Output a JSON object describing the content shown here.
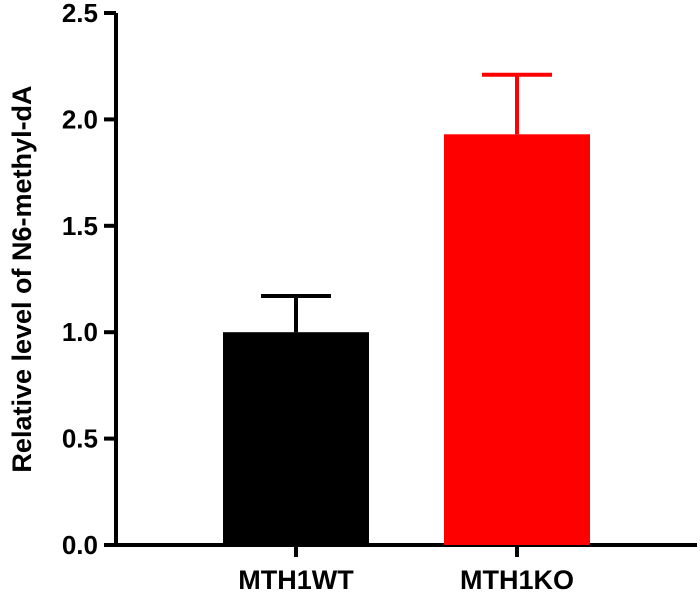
{
  "chart_data": {
    "type": "bar",
    "title": "",
    "xlabel": "",
    "ylabel": "Relative level of N6-methyl-dA",
    "categories": [
      "MTH1WT",
      "MTH1KO"
    ],
    "values": [
      1.0,
      1.93
    ],
    "error_upper": [
      1.17,
      2.21
    ],
    "bar_colors": [
      "#000000",
      "#ff0000"
    ],
    "ylim": [
      0,
      2.5
    ],
    "yticks": [
      "0.0",
      "0.5",
      "1.0",
      "1.5",
      "2.0",
      "2.5"
    ],
    "grid": false,
    "legend": "none"
  }
}
